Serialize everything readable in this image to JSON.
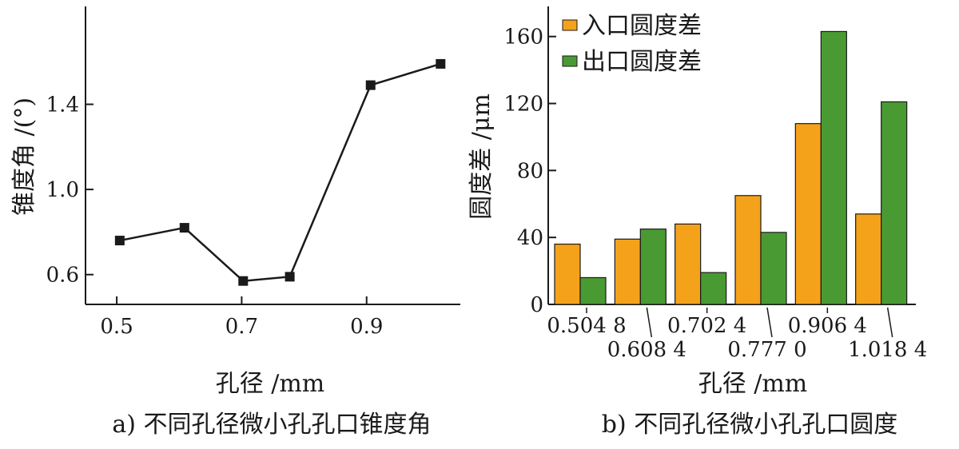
{
  "chart_data": [
    {
      "type": "line",
      "xlabel": "孔径 /mm",
      "ylabel": "锥度角 /(°)",
      "caption": "a)  不同孔径微小孔孔口锥度角",
      "xlim": [
        0.45,
        1.05
      ],
      "ylim": [
        0.46,
        1.86
      ],
      "xticks": [
        "0.5",
        "0.7",
        "0.9"
      ],
      "yticks": [
        "0.6",
        "1.0",
        "1.4"
      ],
      "x": [
        0.5048,
        0.6084,
        0.7024,
        0.777,
        0.9064,
        1.0184
      ],
      "y": [
        0.76,
        0.82,
        0.57,
        0.59,
        1.49,
        1.59
      ],
      "marker": "square",
      "color": "#1a1a1a"
    },
    {
      "type": "bar",
      "xlabel": "孔径 /mm",
      "ylabel": "圆度差 /μm",
      "caption": "b)  不同孔径微小孔孔口圆度",
      "ylim": [
        0,
        178
      ],
      "yticks": [
        "0",
        "40",
        "80",
        "120",
        "160"
      ],
      "categories": [
        "0.504 8",
        "0.608 4",
        "0.702 4",
        "0.777 0",
        "0.906 4",
        "1.018 4"
      ],
      "series": [
        {
          "name": "入口圆度差",
          "values": [
            36,
            39,
            48,
            65,
            108,
            54
          ],
          "color": "#f5a21b"
        },
        {
          "name": "出口圆度差",
          "values": [
            16,
            45,
            19,
            43,
            163,
            121
          ],
          "color": "#4a9a34"
        }
      ],
      "legend": "top-left"
    }
  ]
}
